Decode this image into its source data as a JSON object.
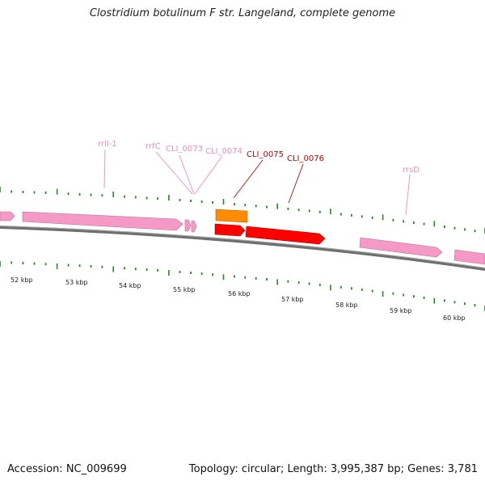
{
  "title": "Clostridium botulinum F str. Langeland, complete genome",
  "footer": {
    "accession": "Accession: NC_009699",
    "summary": "Topology: circular; Length: 3,995,387 bp; Genes: 3,781"
  },
  "colors": {
    "rna_feature": "#f59ac6",
    "gene_forward": "#ff0000",
    "gene_orange": "#ff8c00",
    "backbone": "#808080",
    "tick": "#228b22",
    "label_pink": "#f08cbc",
    "label_red": "#cc0000"
  },
  "scale_labels": [
    "52 kbp",
    "53 kbp",
    "54 kbp",
    "55 kbp",
    "56 kbp",
    "57 kbp",
    "58 kbp",
    "59 kbp",
    "60 kbp"
  ],
  "feature_labels": [
    {
      "text": "rrlI-1",
      "color_key": "label_pink"
    },
    {
      "text": "rrfC",
      "color_key": "label_pink"
    },
    {
      "text": "CLI_0073",
      "color_key": "label_pink"
    },
    {
      "text": "CLI_0074",
      "color_key": "label_pink"
    },
    {
      "text": "CLI_0075",
      "color_key": "label_red"
    },
    {
      "text": "CLI_0076",
      "color_key": "label_red"
    },
    {
      "text": "rrsD",
      "color_key": "label_pink"
    }
  ]
}
